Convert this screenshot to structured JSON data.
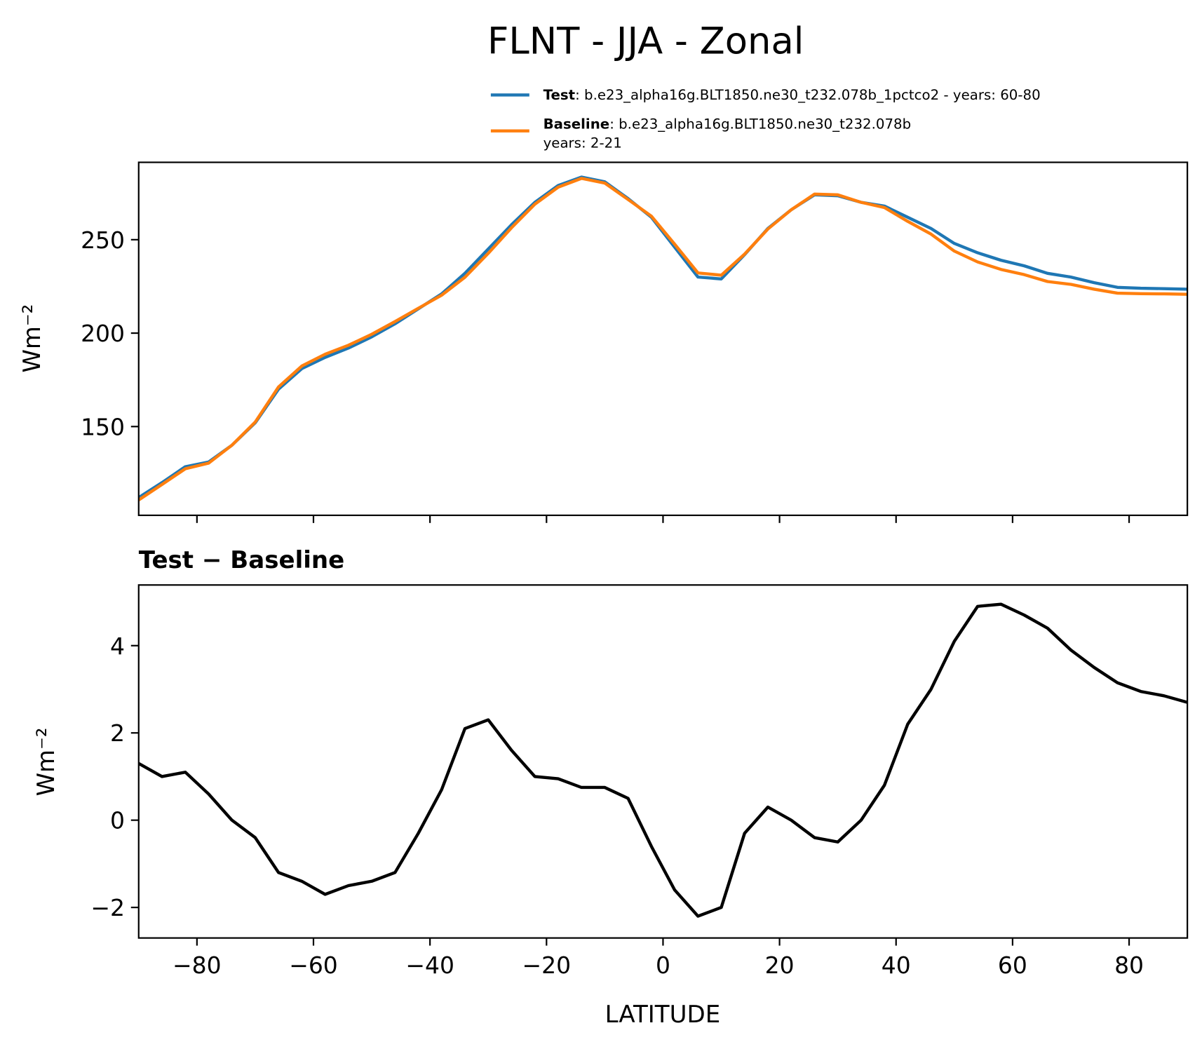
{
  "chart_data": [
    {
      "type": "line",
      "title": "FLNT - JJA - Zonal",
      "ylabel": "Wm⁻²",
      "x": [
        -90,
        -86,
        -82,
        -78,
        -74,
        -70,
        -66,
        -62,
        -58,
        -54,
        -50,
        -46,
        -42,
        -38,
        -34,
        -30,
        -26,
        -22,
        -18,
        -14,
        -10,
        -6,
        -2,
        2,
        6,
        10,
        14,
        18,
        22,
        26,
        30,
        34,
        38,
        42,
        46,
        50,
        54,
        58,
        62,
        66,
        70,
        74,
        78,
        82,
        86,
        90
      ],
      "xlim": [
        -90,
        90
      ],
      "ylim": [
        102.5,
        291.4
      ],
      "yticks": [
        150,
        200,
        250
      ],
      "legend": "upper right",
      "series": [
        {
          "name": "Test",
          "description": [
            ": b.e23_alpha16g.BLT1850.ne30_t232.078b_1pctco2 - years: 60-80"
          ],
          "color": "#1f77b4",
          "values": [
            112,
            120,
            128.5,
            131,
            140,
            152,
            170,
            181,
            187,
            192,
            198,
            205,
            213,
            221,
            232,
            245,
            258,
            270,
            279,
            283.5,
            281,
            272,
            262,
            246,
            230,
            229,
            242,
            256,
            266,
            274,
            273.5,
            270,
            268,
            262,
            256,
            248,
            243,
            239,
            236,
            232,
            230,
            227,
            224.5,
            224,
            223.8,
            223.5
          ]
        },
        {
          "name": "Baseline",
          "description": [
            ": b.e23_alpha16g.BLT1850.ne30_t232.078b",
            "years: 2-21"
          ],
          "color": "#ff7f0e",
          "values": [
            110.7,
            119,
            127.4,
            130.4,
            140,
            152.4,
            171.2,
            182.4,
            188.7,
            193.5,
            199.4,
            206.2,
            213.3,
            220.3,
            229.9,
            242.7,
            256.4,
            269,
            278.1,
            282.8,
            280.3,
            271.5,
            262.6,
            247.6,
            232.2,
            231,
            242.3,
            255.7,
            266,
            274.4,
            274,
            270,
            267.2,
            259.8,
            253,
            243.9,
            238.1,
            234.1,
            231.3,
            227.6,
            226.1,
            223.5,
            221.4,
            221.1,
            221,
            220.8
          ]
        }
      ]
    },
    {
      "type": "line",
      "title": "Test − Baseline",
      "ylabel": "Wm⁻²",
      "xlabel": "LATITUDE",
      "x": [
        -90,
        -86,
        -82,
        -78,
        -74,
        -70,
        -66,
        -62,
        -58,
        -54,
        -50,
        -46,
        -42,
        -38,
        -34,
        -30,
        -26,
        -22,
        -18,
        -14,
        -10,
        -6,
        -2,
        2,
        6,
        10,
        14,
        18,
        22,
        26,
        30,
        34,
        38,
        42,
        46,
        50,
        54,
        58,
        62,
        66,
        70,
        74,
        78,
        82,
        86,
        90
      ],
      "xlim": [
        -90,
        90
      ],
      "ylim": [
        -2.7,
        5.39
      ],
      "xticks": [
        {
          "value": -80,
          "label": "−80"
        },
        {
          "value": -60,
          "label": "−60"
        },
        {
          "value": -40,
          "label": "−40"
        },
        {
          "value": -20,
          "label": "−20"
        },
        0,
        20,
        40,
        60,
        80
      ],
      "yticks": [
        {
          "value": -2,
          "label": "−2"
        },
        0,
        2,
        4
      ],
      "series": [
        {
          "color": "#000000",
          "values": [
            1.3,
            1.0,
            1.1,
            0.6,
            0.0,
            -0.4,
            -1.2,
            -1.4,
            -1.7,
            -1.5,
            -1.4,
            -1.2,
            -0.3,
            0.7,
            2.1,
            2.3,
            1.6,
            1.0,
            0.95,
            0.75,
            0.75,
            0.5,
            -0.6,
            -1.6,
            -2.2,
            -2.0,
            -0.3,
            0.3,
            0.0,
            -0.4,
            -0.5,
            0.0,
            0.8,
            2.2,
            3.0,
            4.1,
            4.9,
            4.95,
            4.7,
            4.4,
            3.9,
            3.5,
            3.15,
            2.95,
            2.85,
            2.7
          ]
        }
      ]
    }
  ]
}
